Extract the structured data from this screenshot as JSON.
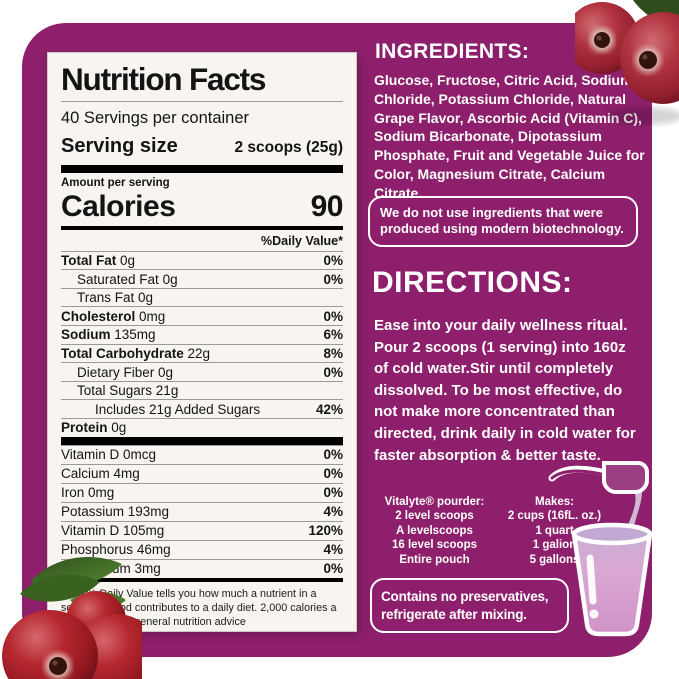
{
  "panel": {
    "title": "Nutrition Facts",
    "servings": "40 Servings per container",
    "serving_size_label": "Serving size",
    "serving_size_value": "2 scoops (25g)",
    "amount_per_serving": "Amount per serving",
    "calories_label": "Calories",
    "calories_value": "90",
    "daily_value_header": "%Daily Value*",
    "macro_rows": [
      {
        "name": "Total Fat",
        "amount": "0g",
        "dv": "0%",
        "bold": true,
        "indent": 0
      },
      {
        "name": "Saturated Fat",
        "amount": "0g",
        "dv": "0%",
        "bold": false,
        "indent": 1
      },
      {
        "name": "Trans Fat",
        "amount": "0g",
        "dv": "",
        "bold": false,
        "indent": 1
      },
      {
        "name": "Cholesterol",
        "amount": "0mg",
        "dv": "0%",
        "bold": true,
        "indent": 0
      },
      {
        "name": "Sodium",
        "amount": "135mg",
        "dv": "6%",
        "bold": true,
        "indent": 0
      },
      {
        "name": "Total Carbohydrate",
        "amount": "22g",
        "dv": "8%",
        "bold": true,
        "indent": 0
      },
      {
        "name": "Dietary Fiber",
        "amount": "0g",
        "dv": "0%",
        "bold": false,
        "indent": 1
      },
      {
        "name": "Total Sugars",
        "amount": "21g",
        "dv": "",
        "bold": false,
        "indent": 1
      },
      {
        "name": "Includes 21g Added Sugars",
        "amount": "",
        "dv": "42%",
        "bold": false,
        "indent": 2
      },
      {
        "name": "Protein",
        "amount": "0g",
        "dv": "",
        "bold": true,
        "indent": 0
      }
    ],
    "micro_rows": [
      {
        "name": "Vitamin D",
        "amount": "0mcg",
        "dv": "0%"
      },
      {
        "name": "Calcium",
        "amount": "4mg",
        "dv": "0%"
      },
      {
        "name": "Iron",
        "amount": "0mg",
        "dv": "0%"
      },
      {
        "name": "Potassium",
        "amount": "193mg",
        "dv": "4%"
      },
      {
        "name": "Vitamin D",
        "amount": "105mg",
        "dv": "120%"
      },
      {
        "name": "Phosphorus",
        "amount": "46mg",
        "dv": "4%"
      },
      {
        "name": "Magnesium",
        "amount": "3mg",
        "dv": "0%"
      }
    ],
    "footnote": "*The % Daily Value tells you how much a nutrient in a serving of food contributes to a daily diet. 2,000 calories a day is used for general nutrition advice"
  },
  "ingredients": {
    "heading": "INGREDIENTS:",
    "text": "Glucose, Fructose, Citric Acid, Sodium Chloride, Potassium Chloride, Natural Grape Flavor, Ascorbic Acid (Vitamin C), Sodium Bicarbonate, Dipotassium Phosphate, Fruit and Vegetable Juice for Color, Magnesium Citrate, Calcium Citrate.",
    "biotech_note": "We do not use ingredients that were produced using modern biotechnology."
  },
  "directions": {
    "heading": "DIRECTIONS:",
    "text": "Ease into your daily wellness ritual. Pour 2 scoops (1 serving) into 160z of cold water.Stir until completely dissolved. To be most effective, do not make more concentrated than directed, drink daily in cold water for faster absorption & better taste.",
    "mixing_table": {
      "col1_header": "Vitalyte® pourder:",
      "col2_header": "Makes:",
      "rows": [
        [
          "2 level scoops",
          "2 cups (16fL. oz.)"
        ],
        [
          "A levelscoops",
          "1 quart"
        ],
        [
          "16 level scoops",
          "1 galion"
        ],
        [
          "Entire pouch",
          "5 gallons"
        ]
      ]
    },
    "preservatives_note": "Contains no preservatives, refrigerate after mixing."
  },
  "colors": {
    "card_purple": "#8d1f6c",
    "panel_background": "#f8f5f0",
    "text_dark": "#141414",
    "text_light": "#ffffff",
    "berry_red": "#a8212f",
    "leaf_green": "#3c6322",
    "glass_pink": "#d79fce"
  },
  "illustrations": {
    "top_right": "cranberries with leaf",
    "bottom_left": "cranberry cluster with leaves",
    "glass": "scoop pouring powder into glass"
  }
}
